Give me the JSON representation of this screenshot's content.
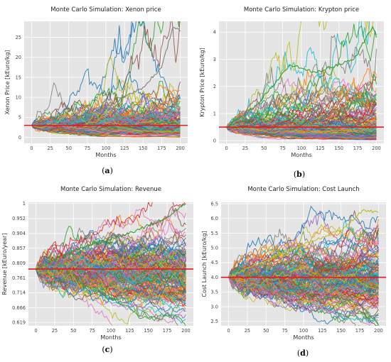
{
  "colors": {
    "panel_bg": "#E5E5E5",
    "grid": "#FFFFFF",
    "reference_line": "#E41A1C",
    "palette": [
      "#1f77b4",
      "#ff7f0e",
      "#2ca02c",
      "#d62728",
      "#9467bd",
      "#8c564b",
      "#e377c2",
      "#7f7f7f",
      "#bcbd22",
      "#17becf"
    ]
  },
  "chart_data": [
    {
      "type": "line",
      "panel": "a",
      "caption_letter": "a",
      "title": "Monte Carlo Simulation: Xenon price",
      "xlabel": "Months",
      "ylabel": "Xenon Price [kEuro/kg]",
      "xlim": [
        -10,
        210
      ],
      "ylim": [
        -1.5,
        29
      ],
      "xticks": [
        0,
        25,
        50,
        75,
        100,
        125,
        150,
        175,
        200
      ],
      "yticks": [
        0,
        5,
        10,
        15,
        20,
        25
      ],
      "ytick_labels": [
        "0",
        "5",
        "10",
        "15",
        "20",
        "25"
      ],
      "grid": true,
      "n_paths": 160,
      "months": 200,
      "start_value": 3.0,
      "reference_line": 3.0,
      "fan_low": 0.3,
      "fan_high_typical": 19,
      "peak_path_values": [
        [
          0,
          3.0
        ],
        [
          50,
          3.6
        ],
        [
          100,
          7.5
        ],
        [
          150,
          12.5
        ],
        [
          175,
          17.5
        ],
        [
          190,
          27.5
        ],
        [
          200,
          26.5
        ]
      ]
    },
    {
      "type": "line",
      "panel": "b",
      "caption_letter": "b",
      "title": "Monte Carlo Simulation: Krypton price",
      "xlabel": "Months",
      "ylabel": "Krypton Price [kEuro/kg]",
      "xlim": [
        -10,
        210
      ],
      "ylim": [
        -0.1,
        4.4
      ],
      "xticks": [
        0,
        25,
        50,
        75,
        100,
        125,
        150,
        175,
        200
      ],
      "yticks": [
        0,
        1,
        2,
        3,
        4
      ],
      "ytick_labels": [
        "0",
        "1",
        "2",
        "3",
        "4"
      ],
      "grid": true,
      "n_paths": 160,
      "months": 200,
      "start_value": 0.5,
      "reference_line": 0.5,
      "fan_low": 0.05,
      "fan_high_typical": 2.6,
      "peak_path_values": [
        [
          0,
          0.5
        ],
        [
          40,
          1.3
        ],
        [
          85,
          2.8
        ],
        [
          120,
          2.5
        ],
        [
          170,
          3.0
        ],
        [
          195,
          4.2
        ],
        [
          200,
          3.8
        ]
      ]
    },
    {
      "type": "line",
      "panel": "c",
      "caption_letter": "c",
      "title": "Monte Carlo Simulation: Revenue",
      "xlabel": "Months",
      "ylabel": "Revenue [kEuro/year]",
      "xlim": [
        -10,
        210
      ],
      "ylim": [
        0.608,
        1.004
      ],
      "xticks": [
        0,
        25,
        50,
        75,
        100,
        125,
        150,
        175,
        200
      ],
      "yticks": [
        0.619,
        0.666,
        0.714,
        0.761,
        0.809,
        0.857,
        0.904,
        0.952,
        1
      ],
      "ytick_labels": [
        "0.619",
        "0.666",
        "0.714",
        "0.761",
        "0.809",
        "0.857",
        "0.904",
        "0.952",
        "1"
      ],
      "grid": true,
      "n_paths": 160,
      "months": 200,
      "start_value": 0.79,
      "reference_line": 0.79,
      "fan_low": 0.625,
      "fan_high_typical": 0.96,
      "peak_path_values": [
        [
          0,
          0.79
        ],
        [
          60,
          0.86
        ],
        [
          120,
          0.9
        ],
        [
          170,
          0.95
        ],
        [
          200,
          1.0
        ]
      ]
    },
    {
      "type": "line",
      "panel": "d",
      "caption_letter": "d",
      "title": "Monte Carlo Simulation: Cost Launch",
      "xlabel": "Months",
      "ylabel": "Cost Launch [kEuro/kg]",
      "xlim": [
        -10,
        210
      ],
      "ylim": [
        2.35,
        6.55
      ],
      "xticks": [
        0,
        25,
        50,
        75,
        100,
        125,
        150,
        175,
        200
      ],
      "yticks": [
        2.5,
        3.0,
        3.5,
        4.0,
        4.5,
        5.0,
        5.5,
        6.0,
        6.5
      ],
      "ytick_labels": [
        "2.5",
        "3.0",
        "3.5",
        "4.0",
        "4.5",
        "5.0",
        "5.5",
        "6.0",
        "6.5"
      ],
      "grid": true,
      "n_paths": 160,
      "months": 200,
      "start_value": 4.0,
      "reference_line": 4.0,
      "fan_low": 2.45,
      "fan_high_typical": 5.9,
      "peak_path_values": [
        [
          0,
          4.0
        ],
        [
          80,
          4.9
        ],
        [
          150,
          5.6
        ],
        [
          180,
          6.3
        ],
        [
          200,
          6.2
        ]
      ]
    }
  ]
}
